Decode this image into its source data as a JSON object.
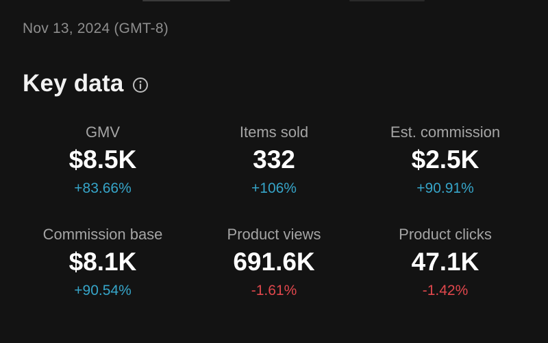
{
  "header": {
    "date": "Nov 13, 2024 (GMT-8)"
  },
  "section": {
    "title": "Key data",
    "info_icon": "info-circle-icon"
  },
  "colors": {
    "background": "#131313",
    "positive": "#36a5c9",
    "negative": "#e0474c",
    "label": "#a5a5a5"
  },
  "metrics": [
    {
      "label": "GMV",
      "value": "$8.5K",
      "change": "+83.66%",
      "trend": "up"
    },
    {
      "label": "Items sold",
      "value": "332",
      "change": "+106%",
      "trend": "up"
    },
    {
      "label": "Est. commission",
      "value": "$2.5K",
      "change": "+90.91%",
      "trend": "up"
    },
    {
      "label": "Commission base",
      "value": "$8.1K",
      "change": "+90.54%",
      "trend": "up"
    },
    {
      "label": "Product views",
      "value": "691.6K",
      "change": "-1.61%",
      "trend": "down"
    },
    {
      "label": "Product clicks",
      "value": "47.1K",
      "change": "-1.42%",
      "trend": "down"
    }
  ]
}
